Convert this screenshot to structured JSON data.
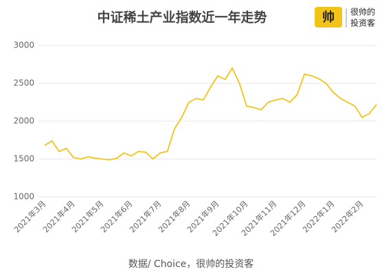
{
  "chart_data": {
    "type": "line",
    "title": "中证稀土产业指数近一年走势",
    "logo": {
      "mark": "帅",
      "line1": "很帅的",
      "line2": "投资客"
    },
    "source": "数据/ Choice，很帅的投资客",
    "categories": [
      "2021年3月",
      null,
      null,
      null,
      "2021年4月",
      null,
      null,
      null,
      "2021年5月",
      null,
      null,
      null,
      "2021年6月",
      null,
      null,
      null,
      "2021年7月",
      null,
      null,
      null,
      "2021年8月",
      null,
      null,
      null,
      "2021年9月",
      null,
      null,
      null,
      "2021年10月",
      null,
      null,
      null,
      "2021年11月",
      null,
      null,
      null,
      "2021年12月",
      null,
      null,
      null,
      "2022年1月",
      null,
      null,
      null,
      "2022年2月",
      null,
      null
    ],
    "values": [
      1680,
      1740,
      1600,
      1640,
      1520,
      1500,
      1530,
      1510,
      1500,
      1490,
      1510,
      1580,
      1540,
      1600,
      1590,
      1500,
      1580,
      1600,
      1900,
      2050,
      2250,
      2300,
      2280,
      2450,
      2600,
      2550,
      2700,
      2500,
      2200,
      2180,
      2150,
      2250,
      2280,
      2300,
      2250,
      2350,
      2620,
      2600,
      2560,
      2500,
      2380,
      2300,
      2250,
      2200,
      2050,
      2100,
      2220
    ],
    "color": "#f2c318",
    "ylim": [
      1000,
      3000
    ],
    "yticks": [
      1000,
      1500,
      2000,
      2500,
      3000
    ],
    "grid": true
  }
}
